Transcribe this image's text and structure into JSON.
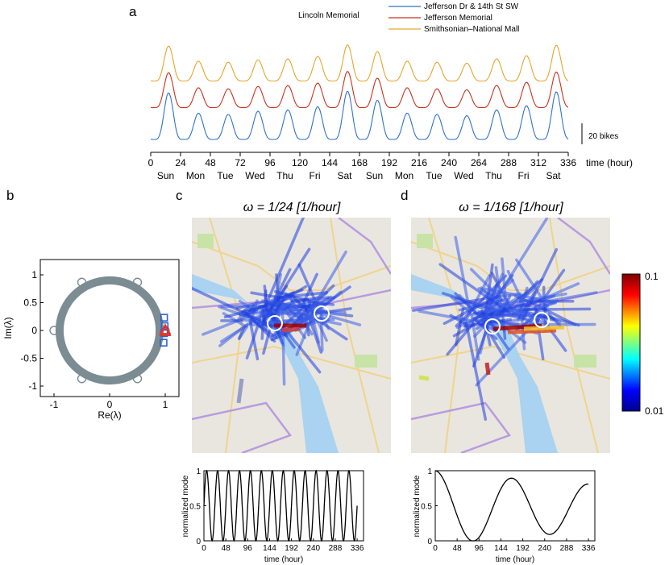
{
  "panel_labels": {
    "a": "a",
    "b": "b",
    "c": "c",
    "d": "d"
  },
  "colors": {
    "blue": "#2f73c8",
    "red": "#c8321e",
    "orange": "#e6a52d",
    "gray": "#7b8c93",
    "marker_blue": "#2f62c8",
    "marker_red": "#e0332e"
  },
  "chart_data": [
    {
      "id": "a",
      "type": "line",
      "title": "",
      "legend_header": "Lincoln Memorial",
      "legend_position": "top",
      "series": [
        {
          "name": "Jefferson Dr & 14th St SW",
          "color": "#2f73c8"
        },
        {
          "name": "Jefferson Memorial",
          "color": "#c8321e"
        },
        {
          "name": "Smithsonian–National Mall",
          "color": "#e6a52d"
        }
      ],
      "xlabel": "time (hour)",
      "xlim": [
        0,
        336
      ],
      "xticks": [
        "0",
        "24",
        "48",
        "72",
        "96",
        "120",
        "144",
        "168",
        "192",
        "216",
        "240",
        "264",
        "288",
        "312",
        "336"
      ],
      "xtick_values": [
        0,
        24,
        48,
        72,
        96,
        120,
        144,
        168,
        192,
        216,
        240,
        264,
        288,
        312,
        336
      ],
      "day_labels": [
        "Sun",
        "Mon",
        "Tue",
        "Wed",
        "Thu",
        "Fri",
        "Sat",
        "Sun",
        "Mon",
        "Tue",
        "Wed",
        "Thu",
        "Fri",
        "Sat"
      ],
      "day_label_hours": [
        12,
        36,
        60,
        84,
        108,
        132,
        156,
        180,
        204,
        228,
        252,
        276,
        300,
        324
      ],
      "scale_bar_label": "20 bikes",
      "daily_peak": [
        1.45,
        0.82,
        0.78,
        0.88,
        0.92,
        1.02,
        1.5,
        1.22,
        0.82,
        0.78,
        0.74,
        0.92,
        1.05,
        1.48
      ],
      "series_offsets": [
        0,
        1.0,
        2.0
      ]
    },
    {
      "id": "b",
      "type": "scatter",
      "xlabel": "Re(λ)",
      "ylabel": "Im(λ)",
      "xlim": [
        -1.25,
        1.25
      ],
      "ylim": [
        -1.25,
        1.25
      ],
      "xticks": [
        "-1",
        "0",
        "1"
      ],
      "xtick_values": [
        -1,
        0,
        1
      ],
      "yticks": [
        "1",
        "0.5",
        "0",
        "-0.5",
        "-1"
      ],
      "ytick_values": [
        1,
        0.5,
        0,
        -0.5,
        -1
      ],
      "ring_radius": 0.9,
      "open_circles": [
        [
          1,
          0
        ],
        [
          0.5,
          0.866
        ],
        [
          -0.5,
          0.866
        ],
        [
          -1,
          0
        ],
        [
          -0.5,
          -0.866
        ],
        [
          0.5,
          -0.866
        ]
      ],
      "squares": [
        [
          0.98,
          0.23
        ],
        [
          0.99,
          0.08
        ],
        [
          0.98,
          -0.05
        ],
        [
          0.97,
          -0.22
        ]
      ],
      "triangles": [
        [
          1.0,
          0.0
        ],
        [
          1.0,
          -0.03
        ]
      ]
    },
    {
      "id": "c",
      "type": "line",
      "title": "ω = 1/24 [1/hour]",
      "xlabel": "time (hour)",
      "ylabel": "normalized mode",
      "xlim": [
        0,
        350
      ],
      "ylim": [
        0,
        1
      ],
      "xticks": [
        "0",
        "48",
        "96",
        "144",
        "192",
        "240",
        "288",
        "336"
      ],
      "xtick_values": [
        0,
        48,
        96,
        144,
        192,
        240,
        288,
        336
      ],
      "yticks": [
        "0",
        "0.5",
        "1"
      ],
      "ytick_values": [
        0,
        0.5,
        1
      ],
      "period_hours": 24,
      "x_end": 336
    },
    {
      "id": "d",
      "type": "line",
      "title": "ω = 1/168 [1/hour]",
      "xlabel": "time (hour)",
      "ylabel": "normalized mode",
      "xlim": [
        0,
        350
      ],
      "ylim": [
        0,
        1
      ],
      "xticks": [
        "0",
        "48",
        "96",
        "144",
        "192",
        "240",
        "288",
        "336"
      ],
      "xtick_values": [
        0,
        48,
        96,
        144,
        192,
        240,
        288,
        336
      ],
      "yticks": [
        "0",
        "0.5",
        "1"
      ],
      "ytick_values": [
        0,
        0.5,
        1
      ],
      "period_hours": 168,
      "x_end": 336
    },
    {
      "id": "colorbar",
      "type": "heatmap",
      "label_max": "0.1",
      "label_min": "0.01",
      "vmax": 0.1,
      "vmin": 0.01,
      "colors": [
        "#7f0000",
        "#ff0000",
        "#ffff00",
        "#00ffff",
        "#0000ff",
        "#00008f"
      ]
    }
  ]
}
